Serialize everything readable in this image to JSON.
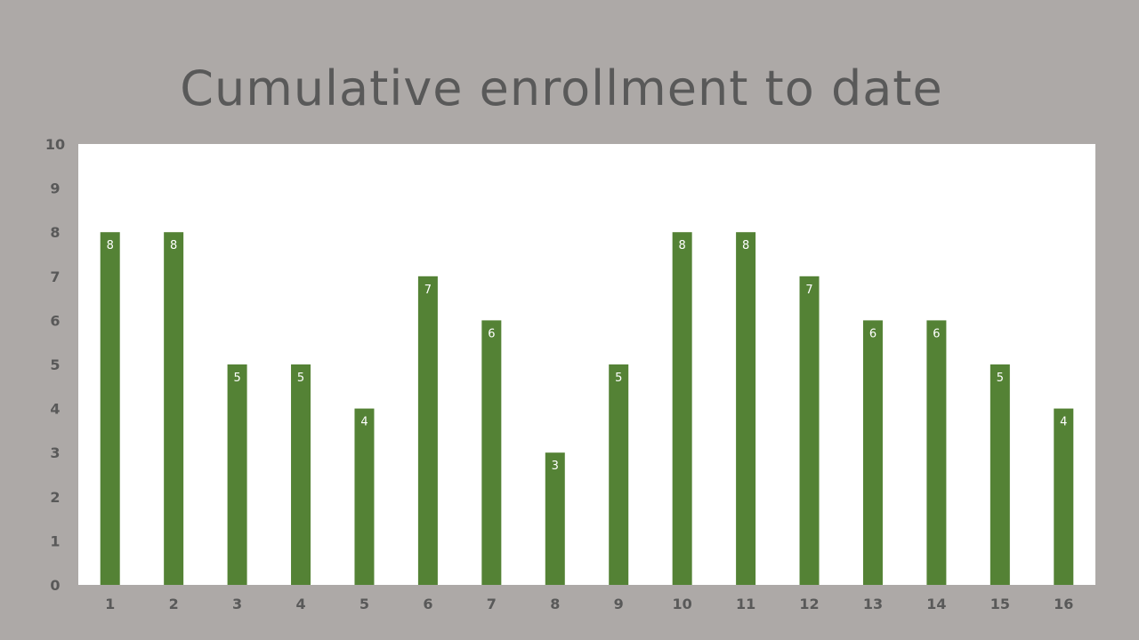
{
  "chart_data": {
    "type": "bar",
    "title": "Cumulative enrollment to date",
    "xlabel": "",
    "ylabel": "",
    "categories": [
      "1",
      "2",
      "3",
      "4",
      "5",
      "6",
      "7",
      "8",
      "9",
      "10",
      "11",
      "12",
      "13",
      "14",
      "15",
      "16"
    ],
    "values": [
      8,
      8,
      5,
      5,
      4,
      7,
      6,
      3,
      5,
      8,
      8,
      7,
      6,
      6,
      5,
      4
    ],
    "ylim": [
      0,
      10
    ],
    "yticks": [
      0,
      1,
      2,
      3,
      4,
      5,
      6,
      7,
      8,
      9,
      10
    ],
    "grid": false,
    "data_labels": true,
    "legend": "none",
    "colors": {
      "bar": "#548235",
      "plot_background": "#ffffff",
      "page_background": "#ada9a7",
      "text": "#595959",
      "data_label": "#ffffff"
    }
  }
}
